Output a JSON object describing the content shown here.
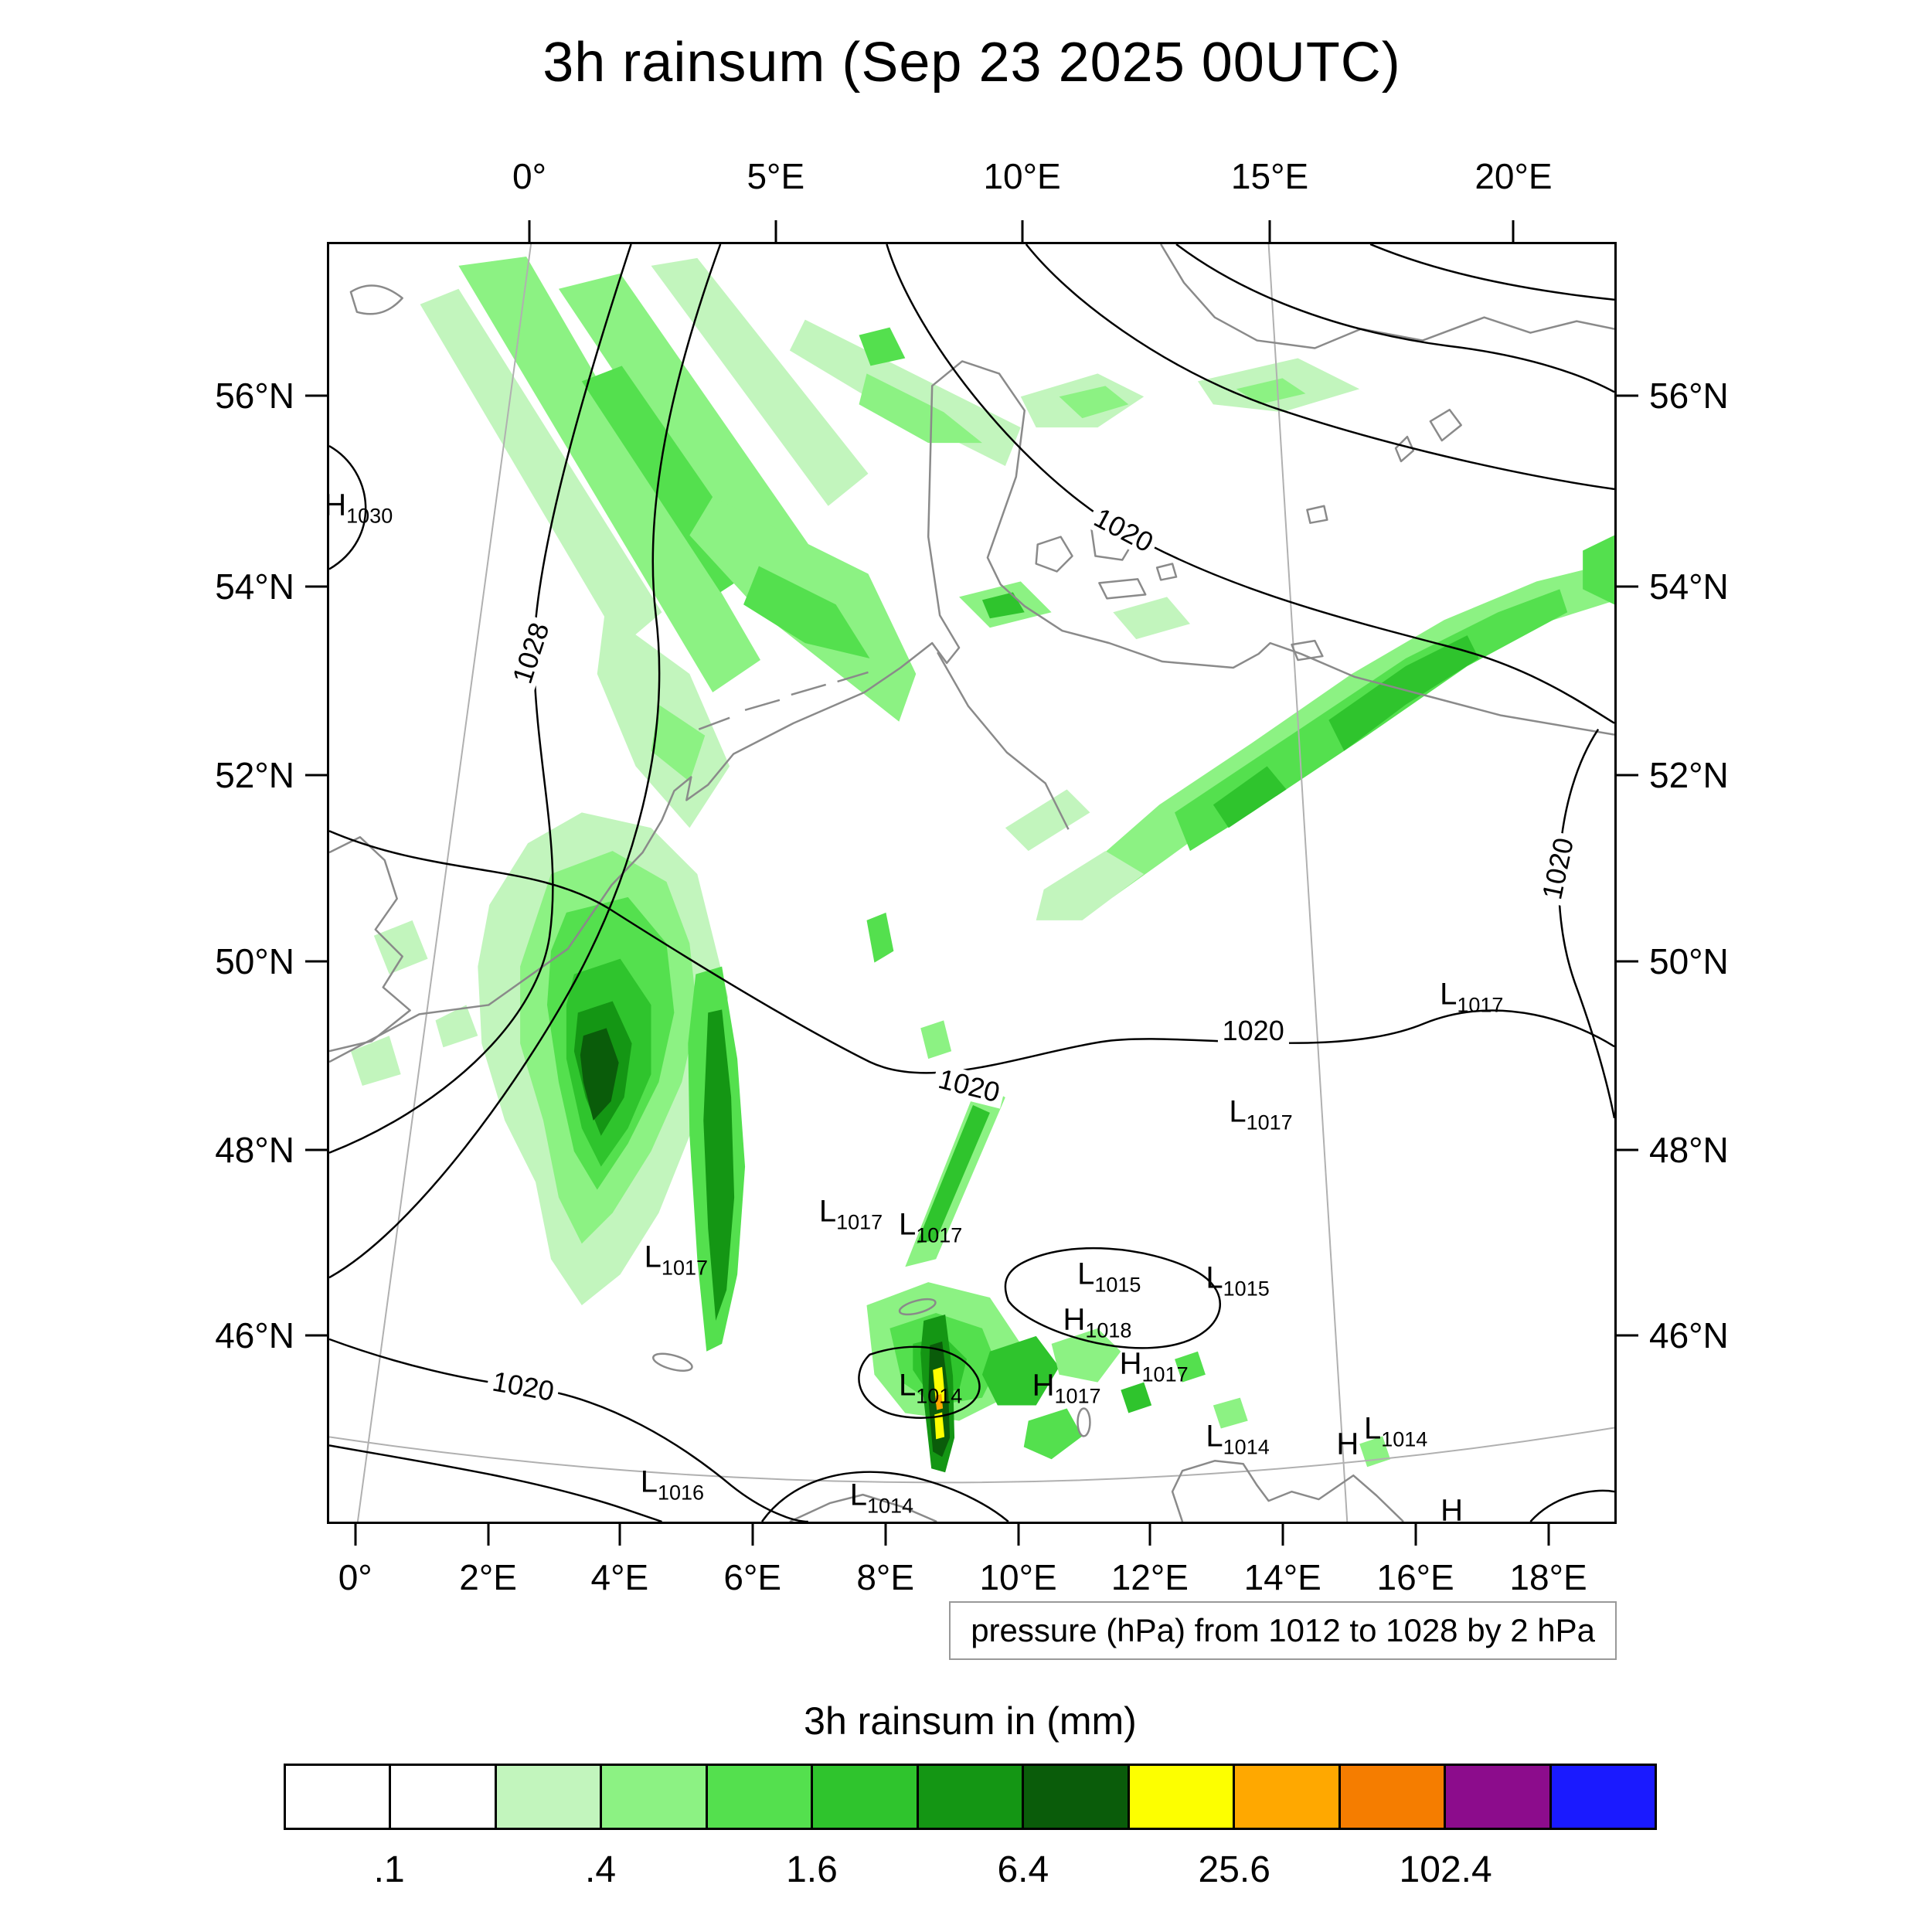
{
  "title": "3h rainsum (Sep 23 2025 00UTC)",
  "caption": "pressure (hPa) from 1012 to 1028 by 2 hPa",
  "axes": {
    "top": [
      {
        "label": "0°",
        "f": 0.157
      },
      {
        "label": "5°E",
        "f": 0.348
      },
      {
        "label": "10°E",
        "f": 0.539
      },
      {
        "label": "15°E",
        "f": 0.731
      },
      {
        "label": "20°E",
        "f": 0.92
      }
    ],
    "bottom": [
      {
        "label": "0°",
        "f": 0.022
      },
      {
        "label": "2°E",
        "f": 0.125
      },
      {
        "label": "4°E",
        "f": 0.227
      },
      {
        "label": "6°E",
        "f": 0.33
      },
      {
        "label": "8°E",
        "f": 0.433
      },
      {
        "label": "10°E",
        "f": 0.536
      },
      {
        "label": "12°E",
        "f": 0.638
      },
      {
        "label": "14°E",
        "f": 0.741
      },
      {
        "label": "16°E",
        "f": 0.844
      },
      {
        "label": "18°E",
        "f": 0.947
      }
    ],
    "left": [
      {
        "label": "56°N",
        "f": 0.12
      },
      {
        "label": "54°N",
        "f": 0.269
      },
      {
        "label": "52°N",
        "f": 0.416
      },
      {
        "label": "50°N",
        "f": 0.561
      },
      {
        "label": "48°N",
        "f": 0.708
      },
      {
        "label": "46°N",
        "f": 0.853
      }
    ],
    "right": [
      {
        "label": "56°N",
        "f": 0.12
      },
      {
        "label": "54°N",
        "f": 0.269
      },
      {
        "label": "52°N",
        "f": 0.416
      },
      {
        "label": "50°N",
        "f": 0.561
      },
      {
        "label": "48°N",
        "f": 0.708
      },
      {
        "label": "46°N",
        "f": 0.853
      }
    ]
  },
  "map": {
    "contour_labels": [
      {
        "text": "1028",
        "fx": 0.157,
        "fy": 0.32,
        "rot": -72
      },
      {
        "text": "1020",
        "fx": 0.618,
        "fy": 0.224,
        "rot": 28
      },
      {
        "text": "1020",
        "fx": 0.956,
        "fy": 0.489,
        "rot": -78
      },
      {
        "text": "1020",
        "fx": 0.498,
        "fy": 0.659,
        "rot": 14
      },
      {
        "text": "1020",
        "fx": 0.719,
        "fy": 0.616,
        "rot": 0
      },
      {
        "text": "1020",
        "fx": 0.151,
        "fy": 0.894,
        "rot": 10
      }
    ],
    "pressure_centers": [
      {
        "letter": "H",
        "value": "1030",
        "fx": 0.012,
        "fy": 0.205
      },
      {
        "letter": "L",
        "value": "1017",
        "fx": 0.879,
        "fy": 0.588
      },
      {
        "letter": "L",
        "value": "1017",
        "fx": 0.715,
        "fy": 0.68
      },
      {
        "letter": "L",
        "value": "1017",
        "fx": 0.396,
        "fy": 0.758
      },
      {
        "letter": "L",
        "value": "1017",
        "fx": 0.458,
        "fy": 0.768
      },
      {
        "letter": "L",
        "value": "1017",
        "fx": 0.26,
        "fy": 0.794
      },
      {
        "letter": "L",
        "value": "1015",
        "fx": 0.597,
        "fy": 0.807
      },
      {
        "letter": "L",
        "value": "1015",
        "fx": 0.697,
        "fy": 0.81
      },
      {
        "letter": "H",
        "value": "1018",
        "fx": 0.587,
        "fy": 0.843
      },
      {
        "letter": "H",
        "value": "1017",
        "fx": 0.631,
        "fy": 0.877
      },
      {
        "letter": "H",
        "value": "1017",
        "fx": 0.563,
        "fy": 0.894
      },
      {
        "letter": "L",
        "value": "1014",
        "fx": 0.458,
        "fy": 0.894
      },
      {
        "letter": "L",
        "value": "1014",
        "fx": 0.697,
        "fy": 0.934
      },
      {
        "letter": "H",
        "value": "",
        "fx": 0.789,
        "fy": 0.94
      },
      {
        "letter": "L",
        "value": "1014",
        "fx": 0.82,
        "fy": 0.928
      },
      {
        "letter": "L",
        "value": "1016",
        "fx": 0.257,
        "fy": 0.97
      },
      {
        "letter": "L",
        "value": "1014",
        "fx": 0.42,
        "fy": 0.98
      },
      {
        "letter": "H",
        "value": "",
        "fx": 0.87,
        "fy": 0.992
      }
    ]
  },
  "colorbar": {
    "title": "3h rainsum in (mm)",
    "colors": [
      "#ffffff",
      "#ffffff",
      "#c2f5bd",
      "#8cf283",
      "#54e04e",
      "#2fc42d",
      "#149614",
      "#0a5c0a",
      "#fdff00",
      "#ffa800",
      "#f57d00",
      "#8c0c8c",
      "#1a1aff"
    ],
    "ticks": [
      {
        "label": ".1",
        "b": 1
      },
      {
        "label": ".4",
        "b": 3
      },
      {
        "label": "1.6",
        "b": 5
      },
      {
        "label": "6.4",
        "b": 7
      },
      {
        "label": "25.6",
        "b": 9
      },
      {
        "label": "102.4",
        "b": 11
      }
    ]
  },
  "chart_data": {
    "type": "map",
    "title": "3h rainsum (Sep 23 2025 00UTC)",
    "field": "3h rainsum in (mm)",
    "overlay": "pressure (hPa) from 1012 to 1028 by 2 hPa",
    "lon_ticks": [
      "0°",
      "2°E",
      "4°E",
      "6°E",
      "8°E",
      "10°E",
      "12°E",
      "14°E",
      "16°E",
      "18°E",
      "20°E"
    ],
    "lat_ticks": [
      "46°N",
      "48°N",
      "50°N",
      "52°N",
      "54°N",
      "56°N"
    ],
    "rain_level_boundaries_mm": [
      0.1,
      0.2,
      0.4,
      0.8,
      1.6,
      3.2,
      6.4,
      12.8,
      25.6,
      51.2,
      102.4,
      204.8
    ],
    "labeled_contours_hpa": [
      1020,
      1028
    ],
    "pressure_extremes": [
      {
        "type": "H",
        "hpa": 1030
      },
      {
        "type": "L",
        "hpa": 1017
      },
      {
        "type": "L",
        "hpa": 1015
      },
      {
        "type": "H",
        "hpa": 1018
      },
      {
        "type": "H",
        "hpa": 1017
      },
      {
        "type": "L",
        "hpa": 1014
      },
      {
        "type": "L",
        "hpa": 1016
      }
    ]
  }
}
